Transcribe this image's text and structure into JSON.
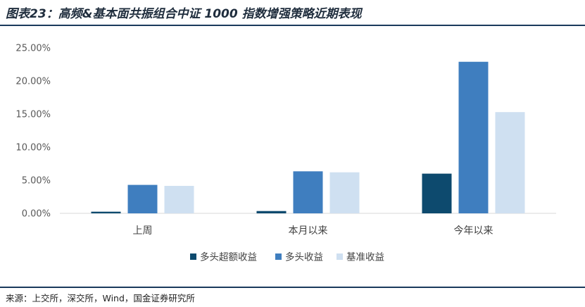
{
  "title": "图表23：高频&基本面共振组合中证 1000 指数增强策略近期表现",
  "source": "来源：上交所，深交所，Wind，国金证券研究所",
  "chart_data": {
    "type": "bar",
    "categories": [
      "上周",
      "本月以来",
      "今年以来"
    ],
    "series": [
      {
        "name": "多头超额收益",
        "color": "#0d4a6e",
        "values": [
          0.25,
          0.35,
          6.0
        ]
      },
      {
        "name": "多头收益",
        "color": "#3f7ebf",
        "values": [
          4.3,
          6.35,
          22.9
        ]
      },
      {
        "name": "基准收益",
        "color": "#cfe0f1",
        "values": [
          4.15,
          6.2,
          15.3
        ]
      }
    ],
    "ylim": [
      0,
      25
    ],
    "yticks": [
      "0.00%",
      "5.00%",
      "10.00%",
      "15.00%",
      "20.00%",
      "25.00%"
    ],
    "ytick_values": [
      0,
      5,
      10,
      15,
      20,
      25
    ],
    "grid": false,
    "legend_position": "bottom"
  }
}
